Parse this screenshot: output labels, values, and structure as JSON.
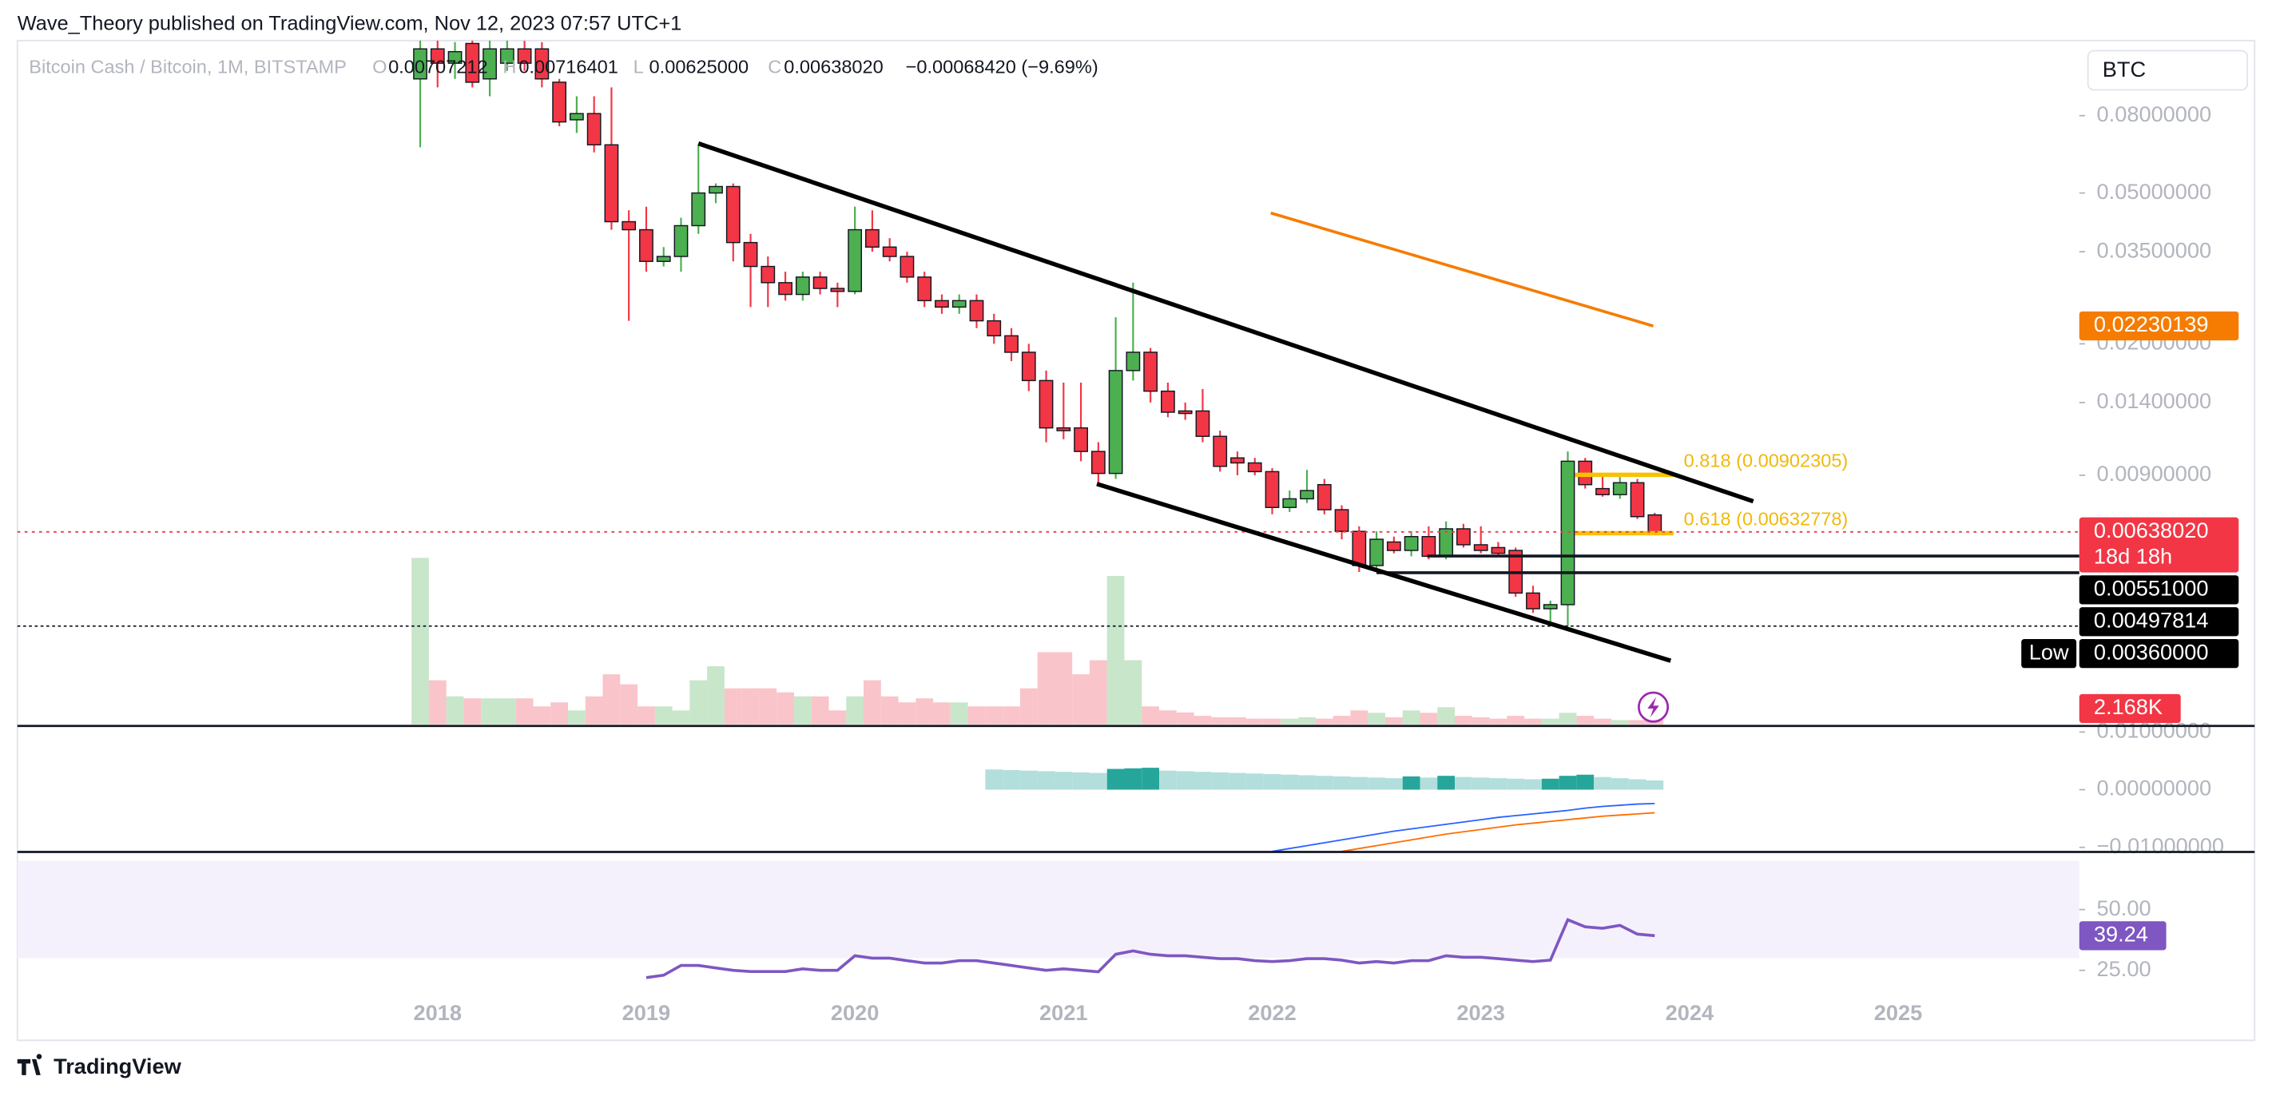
{
  "chart_data": {
    "type": "candlestick",
    "publisher": "Wave_Theory published on TradingView.com, Nov 12, 2023 07:57 UTC+1",
    "legend": {
      "symbol": "Bitcoin Cash / Bitcoin, 1M, BITSTAMP",
      "ohlc": [
        {
          "key": "O",
          "value": "0.00707212"
        },
        {
          "key": "H",
          "value": "0.00716401"
        },
        {
          "key": "L",
          "value": "0.00625000"
        },
        {
          "key": "C",
          "value": "0.00638020"
        }
      ],
      "change": "−0.00068420 (−9.69%)"
    },
    "currency": "BTC",
    "footer": "TradingView",
    "log_scale": true,
    "colors": {
      "up": "#4caf50",
      "down": "#f23645",
      "up_volume": "#c8e6c9",
      "down_volume": "#f9c4ca"
    },
    "categories": [
      null,
      "2018",
      null,
      null,
      null,
      null,
      null,
      null,
      null,
      null,
      null,
      null,
      null,
      "2019",
      null,
      null,
      null,
      null,
      null,
      null,
      null,
      null,
      null,
      null,
      null,
      "2020",
      null,
      null,
      null,
      null,
      null,
      null,
      null,
      null,
      null,
      null,
      null,
      "2021",
      null,
      null,
      null,
      null,
      null,
      null,
      null,
      null,
      null,
      null,
      null,
      "2022",
      null,
      null,
      null,
      null,
      null,
      null,
      null,
      null,
      null,
      null,
      null,
      "2023",
      null,
      null,
      null,
      null,
      null,
      null,
      null,
      null,
      null,
      null
    ],
    "future_labels": [
      "2024",
      "2025"
    ],
    "open": [
      0.1,
      0.12,
      0.11,
      0.124,
      0.1,
      0.11,
      0.12,
      0.12,
      0.098,
      0.078,
      0.081,
      0.067,
      0.042,
      0.04,
      0.033,
      0.034,
      0.041,
      0.05,
      0.052,
      0.037,
      0.032,
      0.029,
      0.027,
      0.03,
      0.028,
      0.0275,
      0.04,
      0.036,
      0.034,
      0.03,
      0.026,
      0.025,
      0.026,
      0.023,
      0.021,
      0.019,
      0.016,
      0.012,
      0.012,
      0.0104,
      0.0091,
      0.017,
      0.019,
      0.015,
      0.0133,
      0.0133,
      0.0114,
      0.01,
      0.0097,
      0.0092,
      0.0074,
      0.0078,
      0.0085,
      0.0073,
      0.0064,
      0.0052,
      0.006,
      0.0057,
      0.0062,
      0.0055,
      0.0065,
      0.0059,
      0.0058,
      0.0057,
      0.0044,
      0.004,
      0.0041,
      0.0098,
      0.0083,
      0.008,
      0.0086,
      0.00707212
    ],
    "high": [
      0.13,
      0.13,
      0.125,
      0.13,
      0.13,
      0.128,
      0.126,
      0.125,
      0.1,
      0.09,
      0.09,
      0.095,
      0.045,
      0.046,
      0.036,
      0.043,
      0.067,
      0.053,
      0.053,
      0.039,
      0.034,
      0.031,
      0.031,
      0.031,
      0.029,
      0.046,
      0.045,
      0.038,
      0.035,
      0.031,
      0.027,
      0.027,
      0.027,
      0.024,
      0.022,
      0.02,
      0.017,
      0.0158,
      0.0158,
      0.011,
      0.0235,
      0.029,
      0.0195,
      0.0158,
      0.014,
      0.0152,
      0.0118,
      0.0104,
      0.01,
      0.0094,
      0.0082,
      0.0093,
      0.0088,
      0.0075,
      0.0066,
      0.0064,
      0.0062,
      0.0064,
      0.0066,
      0.0068,
      0.0067,
      0.0066,
      0.006,
      0.0058,
      0.0046,
      0.0042,
      0.0104,
      0.01,
      0.009,
      0.0089,
      0.0088,
      0.00716401
    ],
    "low": [
      0.066,
      0.095,
      0.1,
      0.095,
      0.09,
      0.105,
      0.105,
      0.095,
      0.075,
      0.072,
      0.064,
      0.04,
      0.023,
      0.031,
      0.032,
      0.031,
      0.039,
      0.047,
      0.033,
      0.025,
      0.025,
      0.026,
      0.026,
      0.027,
      0.025,
      0.027,
      0.035,
      0.033,
      0.029,
      0.025,
      0.024,
      0.024,
      0.022,
      0.02,
      0.018,
      0.015,
      0.011,
      0.0112,
      0.0098,
      0.0086,
      0.0088,
      0.016,
      0.014,
      0.0128,
      0.0126,
      0.011,
      0.0092,
      0.009,
      0.009,
      0.0071,
      0.0072,
      0.0076,
      0.0071,
      0.0061,
      0.005,
      0.005,
      0.0056,
      0.0055,
      0.0054,
      0.0054,
      0.0058,
      0.0056,
      0.0055,
      0.0043,
      0.0039,
      0.0036,
      0.0036,
      0.0083,
      0.0079,
      0.0078,
      0.0069,
      0.00625
    ],
    "close": [
      0.12,
      0.11,
      0.118,
      0.098,
      0.12,
      0.12,
      0.11,
      0.1,
      0.077,
      0.081,
      0.067,
      0.042,
      0.04,
      0.033,
      0.034,
      0.041,
      0.05,
      0.052,
      0.037,
      0.032,
      0.029,
      0.027,
      0.03,
      0.028,
      0.0275,
      0.04,
      0.036,
      0.034,
      0.03,
      0.026,
      0.025,
      0.026,
      0.023,
      0.021,
      0.019,
      0.016,
      0.012,
      0.0118,
      0.0104,
      0.0091,
      0.017,
      0.019,
      0.015,
      0.0132,
      0.0131,
      0.0114,
      0.0095,
      0.0097,
      0.0092,
      0.0074,
      0.0078,
      0.0082,
      0.0073,
      0.0064,
      0.0052,
      0.0061,
      0.0057,
      0.0062,
      0.0055,
      0.0065,
      0.0059,
      0.0057,
      0.0056,
      0.0044,
      0.004,
      0.0041,
      0.0098,
      0.0085,
      0.008,
      0.0086,
      0.007,
      0.0063802
    ],
    "volume": [
      83000,
      22000,
      14000,
      13000,
      13000,
      13000,
      13000,
      9000,
      11000,
      7000,
      14000,
      25000,
      20000,
      9000,
      9000,
      7000,
      22000,
      29000,
      18000,
      18000,
      18000,
      16000,
      14000,
      14000,
      7000,
      14000,
      22000,
      14000,
      11000,
      13000,
      11000,
      11000,
      9000,
      9000,
      9000,
      18000,
      36000,
      36000,
      25000,
      32000,
      74000,
      32000,
      9000,
      7000,
      6000,
      4300,
      3600,
      3600,
      2900,
      2900,
      2900,
      3600,
      2900,
      4300,
      7000,
      5800,
      3600,
      7000,
      5800,
      8600,
      4300,
      3600,
      2900,
      4300,
      2900,
      2900,
      5800,
      4300,
      2900,
      2200,
      2200,
      2168
    ],
    "volume_label": "2.168K",
    "ylim": [
      0.00198,
      0.124
    ],
    "yticks": [
      {
        "value": 0.08,
        "label": "0.08000000"
      },
      {
        "value": 0.05,
        "label": "0.05000000"
      },
      {
        "value": 0.035,
        "label": "0.03500000"
      },
      {
        "value": 0.02,
        "label": "0.02000000"
      },
      {
        "value": 0.014,
        "label": "0.01400000"
      },
      {
        "value": 0.009,
        "label": "0.00900000"
      }
    ],
    "ma_tag": {
      "value": 0.02230139,
      "label": "0.02230139",
      "color": "#f57c00"
    },
    "last_price": {
      "label": "0.00638020",
      "countdown": "18d 18h"
    },
    "levels": [
      {
        "value": 0.00551,
        "label": "0.00551000"
      },
      {
        "value": 0.00497814,
        "label": "0.00497814"
      }
    ],
    "low_level": {
      "value": 0.0036,
      "label": "0.00360000",
      "tag": "Low"
    },
    "fib": [
      {
        "value": 0.00902305,
        "label": "0.818 (0.00902305)"
      },
      {
        "value": 0.00632778,
        "label": "0.618 (0.00632778)"
      }
    ],
    "macd": {
      "ylim": [
        -0.0108,
        0.0108
      ],
      "yticks": [
        {
          "value": 0.01,
          "label": "0.01000000"
        },
        {
          "value": 0,
          "label": "0.00000000"
        },
        {
          "value": -0.01,
          "label": "−0.01000000"
        }
      ],
      "colors": {
        "hist_up": "#26a69a",
        "hist_down": "#b2dfdb",
        "macd": "#2962ff",
        "signal": "#ff6d00"
      },
      "histogram": [
        null,
        null,
        null,
        null,
        null,
        null,
        null,
        null,
        null,
        null,
        null,
        null,
        null,
        null,
        null,
        null,
        null,
        null,
        null,
        null,
        null,
        null,
        null,
        null,
        null,
        null,
        null,
        null,
        null,
        null,
        null,
        null,
        null,
        0.0035,
        0.0034,
        0.0033,
        0.0032,
        0.0031,
        0.003,
        0.0029,
        0.0036,
        0.0037,
        0.0038,
        0.0033,
        0.0032,
        0.0031,
        0.003,
        0.0029,
        0.0028,
        0.0027,
        0.0026,
        0.0025,
        0.0024,
        0.0023,
        0.0022,
        0.0021,
        0.002,
        0.0023,
        0.0021,
        0.0024,
        0.0022,
        0.0021,
        0.002,
        0.0019,
        0.0018,
        0.0019,
        0.0024,
        0.0026,
        0.0022,
        0.002,
        0.0018,
        0.0016
      ],
      "macd": [
        null,
        null,
        null,
        null,
        null,
        null,
        null,
        null,
        null,
        null,
        null,
        null,
        null,
        null,
        null,
        null,
        null,
        null,
        null,
        null,
        null,
        null,
        null,
        null,
        null,
        null,
        null,
        null,
        null,
        null,
        null,
        null,
        null,
        null,
        null,
        null,
        null,
        null,
        null,
        null,
        null,
        null,
        null,
        null,
        null,
        null,
        null,
        null,
        null,
        -0.0107,
        -0.0102,
        -0.0097,
        -0.0092,
        -0.0087,
        -0.0082,
        -0.0077,
        -0.0072,
        -0.0068,
        -0.0064,
        -0.006,
        -0.0056,
        -0.0052,
        -0.0048,
        -0.0045,
        -0.0042,
        -0.0039,
        -0.0036,
        -0.0032,
        -0.0029,
        -0.0027,
        -0.0025,
        -0.0024
      ],
      "signal": [
        null,
        null,
        null,
        null,
        null,
        null,
        null,
        null,
        null,
        null,
        null,
        null,
        null,
        null,
        null,
        null,
        null,
        null,
        null,
        null,
        null,
        null,
        null,
        null,
        null,
        null,
        null,
        null,
        null,
        null,
        null,
        null,
        null,
        null,
        null,
        null,
        null,
        null,
        null,
        null,
        null,
        null,
        null,
        null,
        null,
        null,
        null,
        null,
        null,
        null,
        null,
        null,
        null,
        -0.0107,
        -0.0102,
        -0.0097,
        -0.0092,
        -0.0087,
        -0.0082,
        -0.0077,
        -0.0073,
        -0.0069,
        -0.0065,
        -0.0061,
        -0.0058,
        -0.0055,
        -0.0052,
        -0.0049,
        -0.0046,
        -0.0044,
        -0.0042,
        -0.004
      ]
    },
    "rsi": {
      "ylim": [
        -3.8,
        72.5
      ],
      "band": [
        30,
        70
      ],
      "color": "#7e57c2",
      "band_color": "#f5f1fc",
      "yticks": [
        {
          "value": 50,
          "label": "50.00"
        },
        {
          "value": 25,
          "label": "25.00"
        }
      ],
      "values": [
        null,
        null,
        null,
        null,
        null,
        null,
        null,
        null,
        null,
        null,
        null,
        null,
        null,
        22,
        23,
        27,
        27,
        26,
        25,
        24.5,
        24.5,
        24.5,
        25.6,
        25,
        25,
        31,
        30,
        30,
        29,
        28,
        28,
        29,
        29,
        28,
        27,
        26,
        25,
        25.6,
        25,
        24.4,
        31.6,
        33,
        31.6,
        31,
        31,
        30.4,
        29.8,
        29.8,
        29,
        28.6,
        29,
        29.8,
        29.8,
        29.2,
        28,
        28.6,
        28,
        29,
        29,
        31,
        30.4,
        30.4,
        29.8,
        29.2,
        28.6,
        29.2,
        45.8,
        42.9,
        42.3,
        43.5,
        39.9,
        39.24
      ]
    }
  }
}
